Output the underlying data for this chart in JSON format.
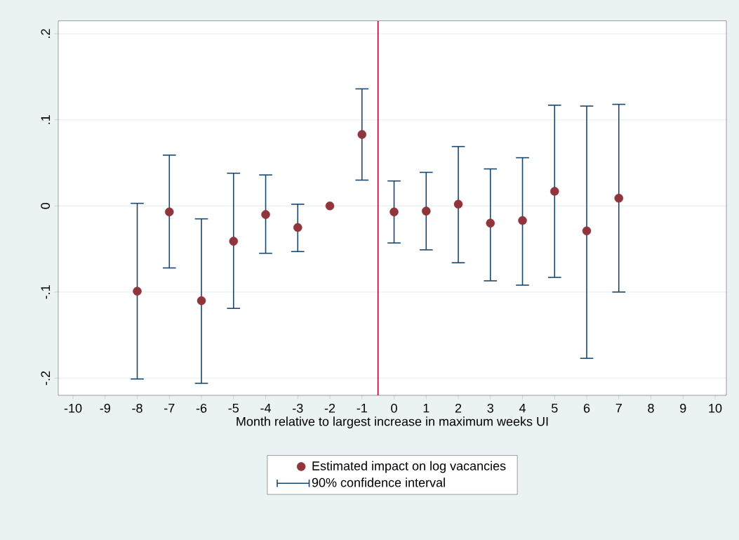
{
  "chart_data": {
    "type": "scatter",
    "xlabel": "Month relative to largest increase in maximum weeks UI",
    "x": [
      -8,
      -7,
      -6,
      -5,
      -4,
      -3,
      -2,
      -1,
      0,
      1,
      2,
      3,
      4,
      5,
      6,
      7
    ],
    "series": [
      {
        "name": "Estimated impact on log vacancies",
        "color": "#90353b",
        "values": [
          -0.099,
          -0.007,
          -0.11,
          -0.041,
          -0.01,
          -0.025,
          0,
          0.083,
          -0.007,
          -0.006,
          0.002,
          -0.02,
          -0.017,
          0.017,
          -0.029,
          0.009
        ],
        "errors": [
          [
            -0.201,
            0.003
          ],
          [
            -0.072,
            0.059
          ],
          [
            -0.206,
            -0.015
          ],
          [
            -0.119,
            0.038
          ],
          [
            -0.055,
            0.036
          ],
          [
            -0.053,
            0.002
          ],
          null,
          [
            0.03,
            0.136
          ],
          [
            -0.043,
            0.029
          ],
          [
            -0.051,
            0.039
          ],
          [
            -0.066,
            0.069
          ],
          [
            -0.087,
            0.043
          ],
          [
            -0.092,
            0.056
          ],
          [
            -0.083,
            0.117
          ],
          [
            -0.177,
            0.116
          ],
          [
            -0.1,
            0.118
          ]
        ]
      }
    ],
    "annotations": [
      "90% confidence interval"
    ],
    "ref_lines": [
      {
        "axis": "x",
        "value": -0.5,
        "color": "#c10534"
      }
    ],
    "xlim": [
      -10.46,
      10.35
    ],
    "ylim": [
      -0.22,
      0.215
    ],
    "xticks": [
      -10,
      -9,
      -8,
      -7,
      -6,
      -5,
      -4,
      -3,
      -2,
      -1,
      0,
      1,
      2,
      3,
      4,
      5,
      6,
      7,
      8,
      9,
      10
    ],
    "yticks": [
      {
        "value": -0.2,
        "label": "-.2"
      },
      {
        "value": -0.1,
        "label": "-.1"
      },
      0,
      {
        "value": 0.1,
        "label": ".1"
      },
      {
        "value": 0.2,
        "label": ".2"
      }
    ],
    "grid": "y",
    "legend": "bottom"
  }
}
